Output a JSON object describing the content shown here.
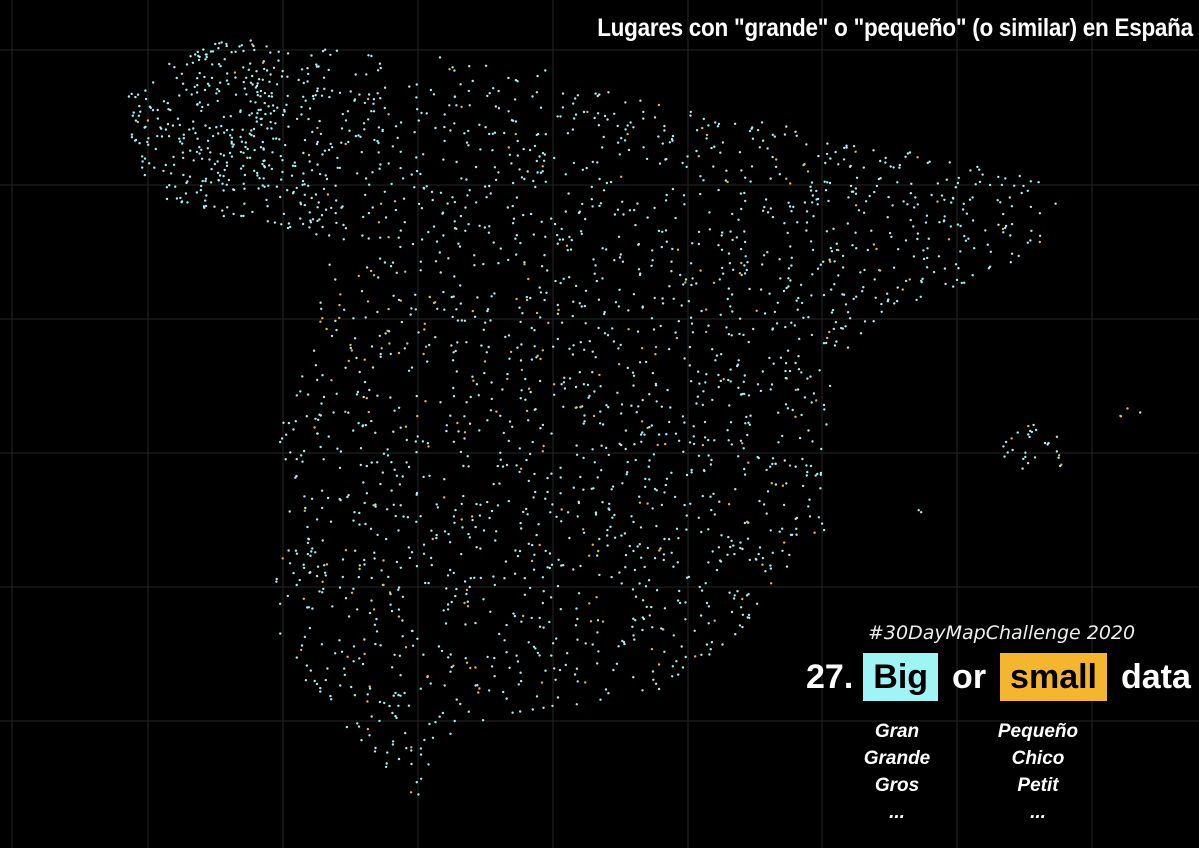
{
  "title": "Lugares con \"grande\" o \"pequeño\" (o similar) en España",
  "subtitle": "#30DayMapChallenge 2020",
  "headline": {
    "number": "27.",
    "big": "Big",
    "or": "or",
    "small": "small",
    "data": "data"
  },
  "legend": {
    "big_words": [
      "Gran",
      "Grande",
      "Gros",
      "..."
    ],
    "small_words": [
      "Pequeño",
      "Chico",
      "Petit",
      "..."
    ]
  },
  "colors": {
    "background": "#000000",
    "big": "#9ff5f5",
    "small": "#f5b62f",
    "grid": "#262626"
  },
  "map": {
    "category_share_small": 0.12,
    "approx_points_shown": 2600
  }
}
